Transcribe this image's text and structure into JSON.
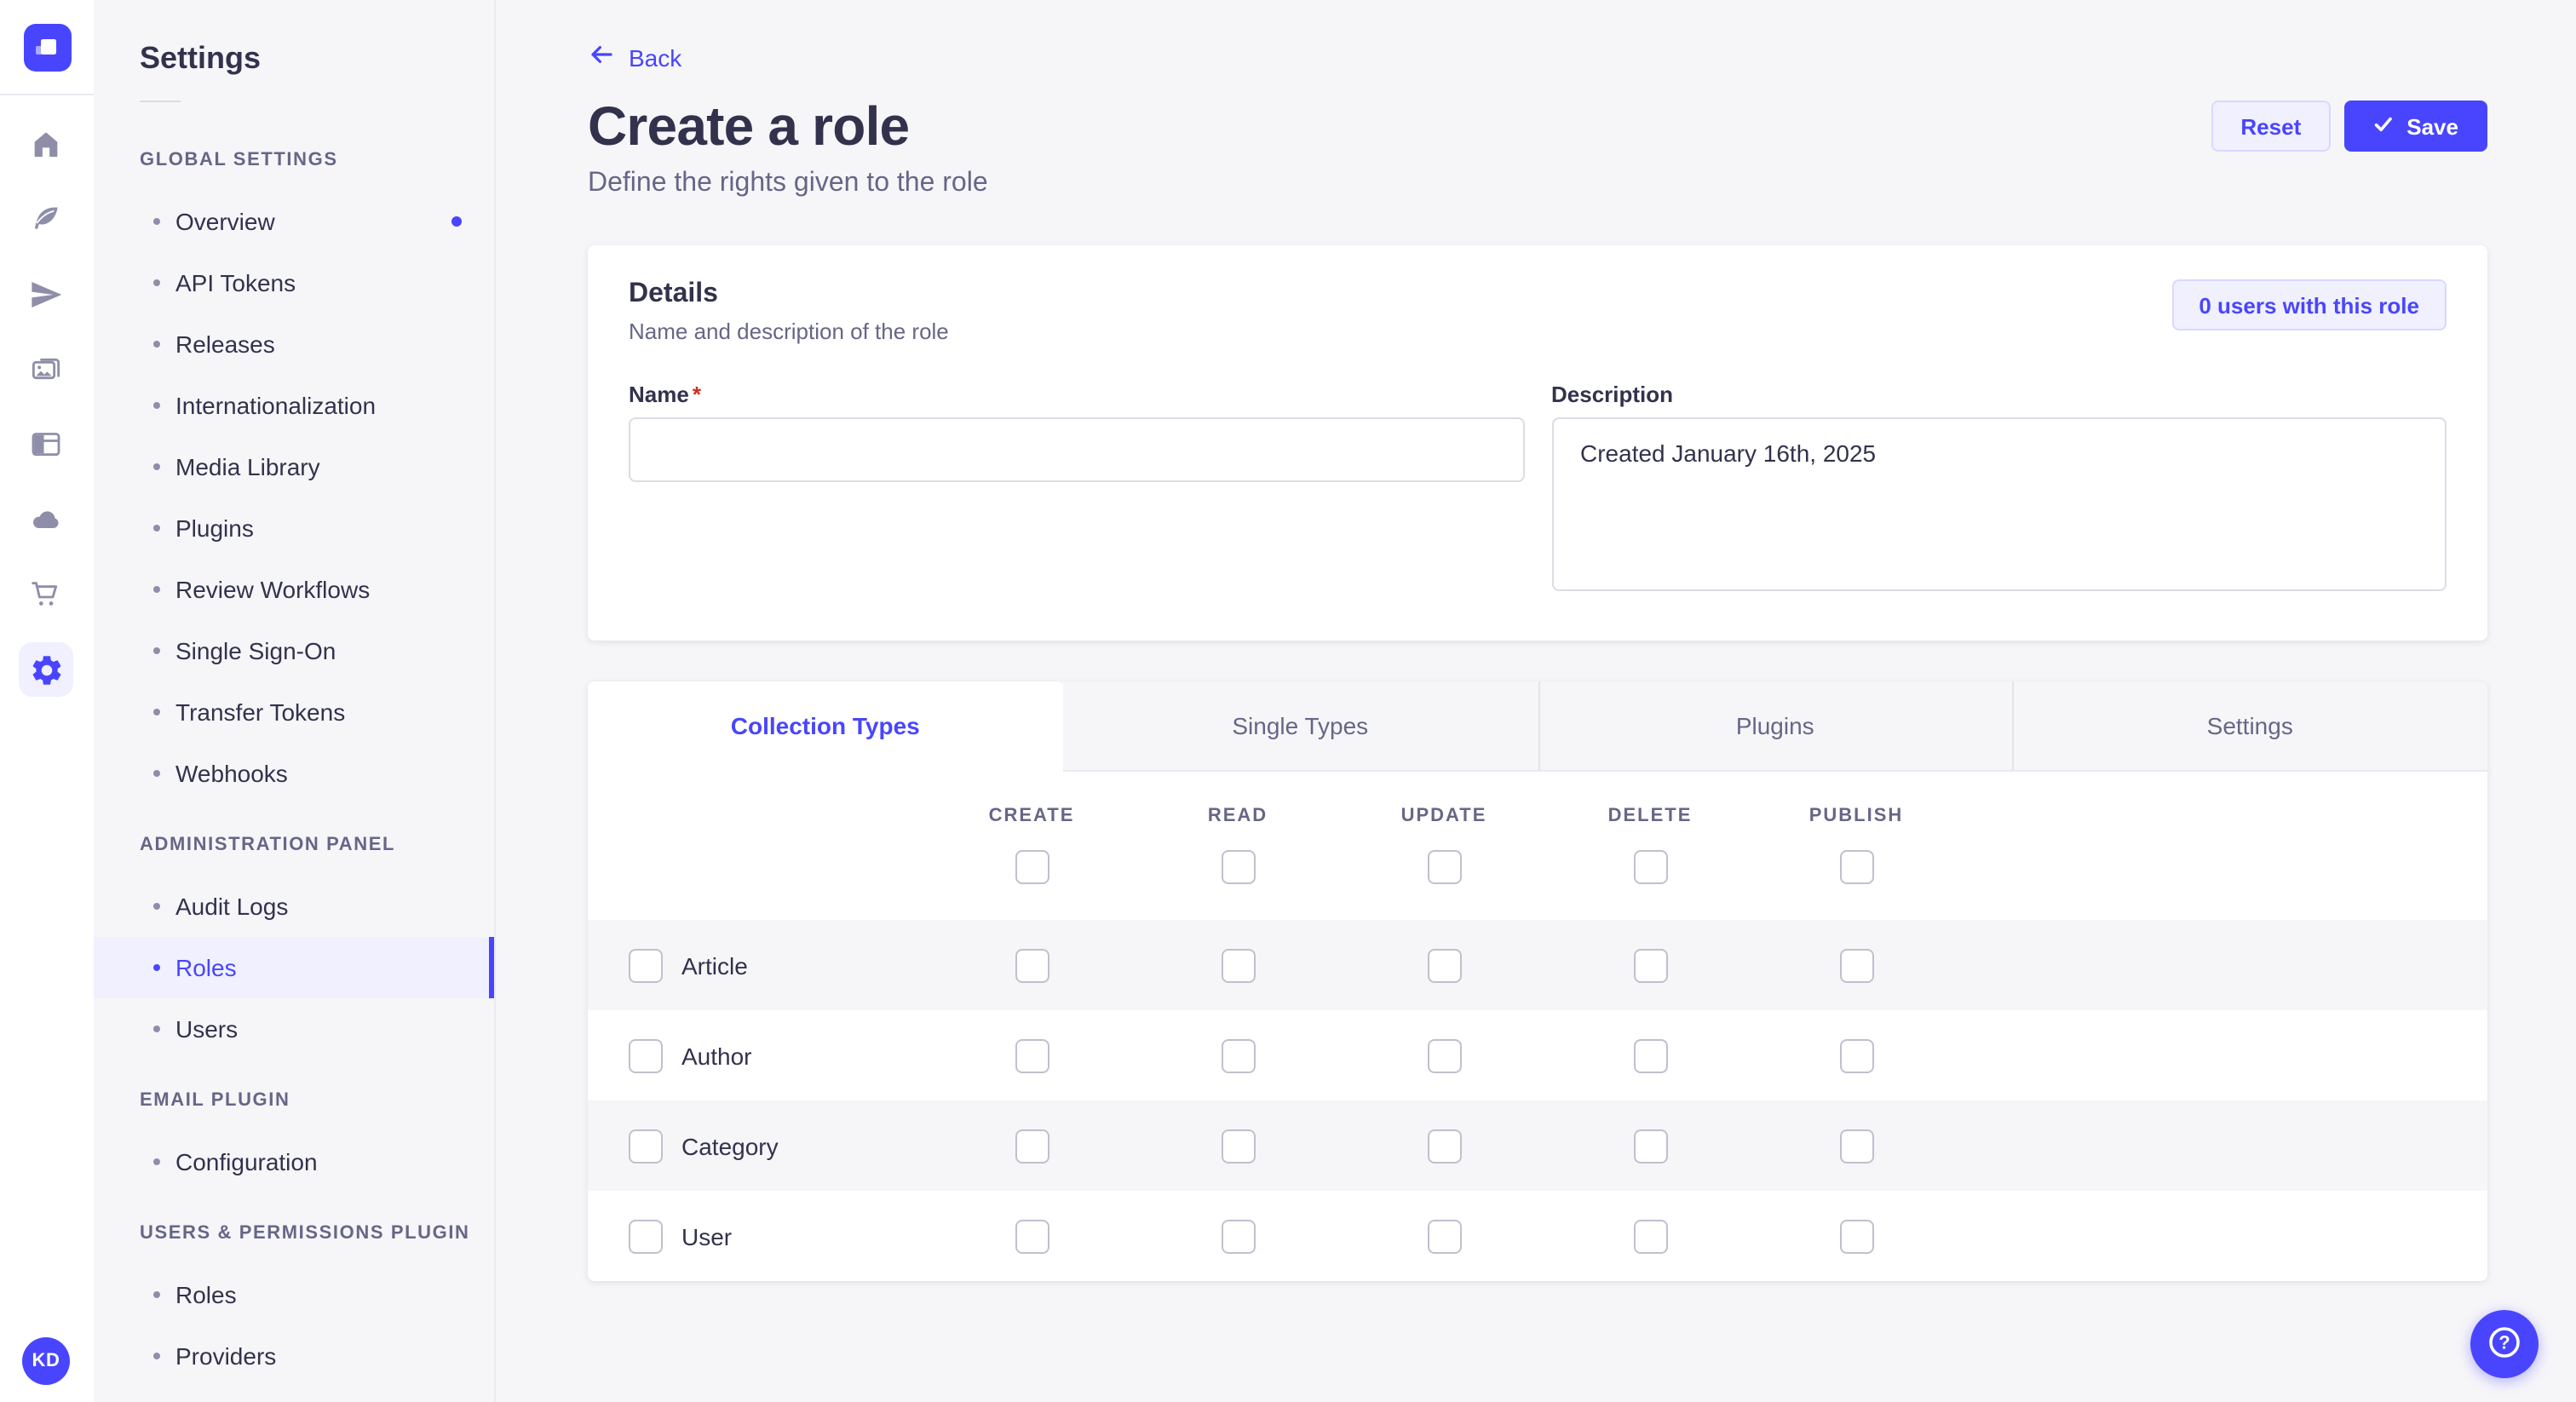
{
  "rail": {
    "avatar_initials": "KD",
    "items": [
      {
        "name": "home",
        "active": false
      },
      {
        "name": "content-manager",
        "active": false
      },
      {
        "name": "releases",
        "active": false
      },
      {
        "name": "media-library",
        "active": false
      },
      {
        "name": "content-type-builder",
        "active": false
      },
      {
        "name": "cloud",
        "active": false
      },
      {
        "name": "marketplace",
        "active": false
      },
      {
        "name": "settings",
        "active": true
      }
    ]
  },
  "sidebar": {
    "title": "Settings",
    "sections": [
      {
        "label": "GLOBAL SETTINGS",
        "items": [
          {
            "label": "Overview",
            "active": false,
            "dot": true
          },
          {
            "label": "API Tokens",
            "active": false
          },
          {
            "label": "Releases",
            "active": false
          },
          {
            "label": "Internationalization",
            "active": false
          },
          {
            "label": "Media Library",
            "active": false
          },
          {
            "label": "Plugins",
            "active": false
          },
          {
            "label": "Review Workflows",
            "active": false
          },
          {
            "label": "Single Sign-On",
            "active": false
          },
          {
            "label": "Transfer Tokens",
            "active": false
          },
          {
            "label": "Webhooks",
            "active": false
          }
        ]
      },
      {
        "label": "ADMINISTRATION PANEL",
        "items": [
          {
            "label": "Audit Logs",
            "active": false
          },
          {
            "label": "Roles",
            "active": true
          },
          {
            "label": "Users",
            "active": false
          }
        ]
      },
      {
        "label": "EMAIL PLUGIN",
        "items": [
          {
            "label": "Configuration",
            "active": false
          }
        ]
      },
      {
        "label": "USERS & PERMISSIONS PLUGIN",
        "items": [
          {
            "label": "Roles",
            "active": false
          },
          {
            "label": "Providers",
            "active": false
          }
        ]
      }
    ]
  },
  "header": {
    "back_label": "Back",
    "title": "Create a role",
    "subtitle": "Define the rights given to the role",
    "reset_label": "Reset",
    "save_label": "Save"
  },
  "details": {
    "title": "Details",
    "subtitle": "Name and description of the role",
    "users_button_label": "0 users with this role",
    "name_label": "Name",
    "required_mark": "*",
    "name_value": "",
    "description_label": "Description",
    "description_value": "Created January 16th, 2025"
  },
  "permissions": {
    "tabs": [
      {
        "label": "Collection Types",
        "active": true
      },
      {
        "label": "Single Types",
        "active": false
      },
      {
        "label": "Plugins",
        "active": false
      },
      {
        "label": "Settings",
        "active": false
      }
    ],
    "columns": [
      "CREATE",
      "READ",
      "UPDATE",
      "DELETE",
      "PUBLISH"
    ],
    "select_all_checked": [
      false,
      false,
      false,
      false,
      false
    ],
    "rows": [
      {
        "label": "Article",
        "checked": false,
        "permissions": [
          false,
          false,
          false,
          false,
          false
        ]
      },
      {
        "label": "Author",
        "checked": false,
        "permissions": [
          false,
          false,
          false,
          false,
          false
        ]
      },
      {
        "label": "Category",
        "checked": false,
        "permissions": [
          false,
          false,
          false,
          false,
          false
        ]
      },
      {
        "label": "User",
        "checked": false,
        "permissions": [
          false,
          false,
          false,
          false,
          false
        ]
      }
    ]
  },
  "colors": {
    "primary": "#4945FF",
    "primary_light": "#F0F0FF",
    "primary_border": "#D9D8FF",
    "page_bg": "#F6F6F9",
    "text": "#32324D",
    "text_secondary": "#666687",
    "required": "#D02B20"
  }
}
